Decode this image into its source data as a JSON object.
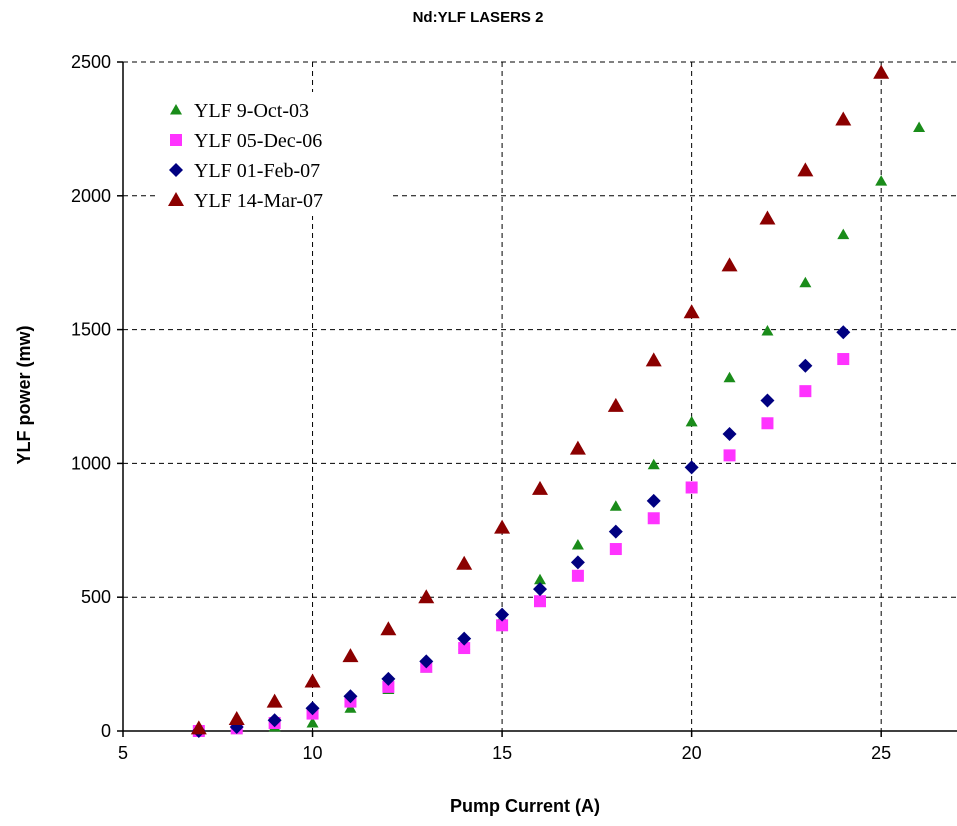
{
  "chart_data": {
    "type": "scatter",
    "title": "Nd:YLF LASERS 2",
    "xlabel": "Pump Current (A)",
    "ylabel": "YLF power (mw)",
    "xlim": [
      5,
      27
    ],
    "ylim": [
      0,
      2500
    ],
    "xticks": [
      5,
      10,
      15,
      20,
      25
    ],
    "yticks": [
      0,
      500,
      1000,
      1500,
      2000,
      2500
    ],
    "grid": true,
    "legend_position": "top-left",
    "series": [
      {
        "name": "YLF 9-Oct-03",
        "marker": "triangle",
        "color": "#1a8c1a",
        "x": [
          7,
          8,
          9,
          10,
          11,
          12,
          13,
          14,
          15,
          16,
          17,
          18,
          19,
          20,
          21,
          22,
          23,
          24,
          25,
          26
        ],
        "y": [
          0,
          5,
          15,
          30,
          85,
          155,
          235,
          320,
          420,
          565,
          695,
          840,
          995,
          1155,
          1320,
          1495,
          1675,
          1855,
          2055,
          2255
        ]
      },
      {
        "name": "YLF 05-Dec-06",
        "marker": "square",
        "color": "#ff33ff",
        "x": [
          7,
          8,
          9,
          10,
          11,
          12,
          13,
          14,
          15,
          16,
          17,
          18,
          19,
          20,
          21,
          22,
          23,
          24
        ],
        "y": [
          0,
          10,
          30,
          65,
          110,
          165,
          240,
          310,
          395,
          485,
          580,
          680,
          795,
          910,
          1030,
          1150,
          1270,
          1390
        ]
      },
      {
        "name": "YLF 01-Feb-07",
        "marker": "diamond",
        "color": "#000080",
        "x": [
          7,
          8,
          9,
          10,
          11,
          12,
          13,
          14,
          15,
          16,
          17,
          18,
          19,
          20,
          21,
          22,
          23,
          24
        ],
        "y": [
          0,
          15,
          40,
          85,
          130,
          195,
          260,
          345,
          435,
          530,
          630,
          745,
          860,
          985,
          1110,
          1235,
          1365,
          1490
        ]
      },
      {
        "name": "YLF 14-Mar-07",
        "marker": "triangle",
        "color": "#8b0000",
        "x": [
          7,
          8,
          9,
          10,
          11,
          12,
          13,
          14,
          15,
          16,
          17,
          18,
          19,
          20,
          21,
          22,
          23,
          24,
          25
        ],
        "y": [
          10,
          45,
          110,
          185,
          280,
          380,
          500,
          625,
          760,
          905,
          1055,
          1215,
          1385,
          1565,
          1740,
          1915,
          2095,
          2285,
          2460
        ]
      }
    ]
  }
}
